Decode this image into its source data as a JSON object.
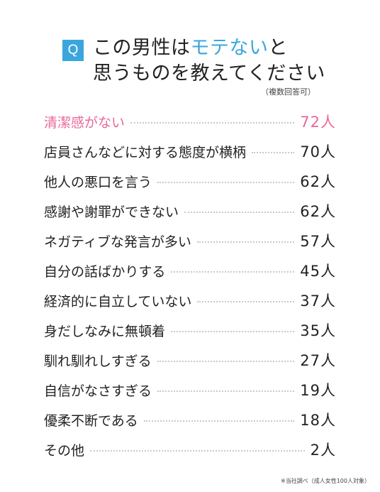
{
  "question": {
    "badge": "Q",
    "line1_before": "この男性は",
    "line1_highlight": "モテない",
    "line1_after": "と",
    "line2": "思うものを教えてください",
    "note": "（複数回答可）"
  },
  "colors": {
    "accent_blue": "#3aa6dd",
    "highlight_pink": "#e8689a",
    "text": "#222222"
  },
  "items": [
    {
      "label": "清潔感がない",
      "value": "72人"
    },
    {
      "label": "店員さんなどに対する態度が横柄",
      "value": "70人"
    },
    {
      "label": "他人の悪口を言う",
      "value": "62人"
    },
    {
      "label": "感謝や謝罪ができない",
      "value": "62人"
    },
    {
      "label": "ネガティブな発言が多い",
      "value": "57人"
    },
    {
      "label": "自分の話ばかりする",
      "value": "45人"
    },
    {
      "label": "経済的に自立していない",
      "value": "37人"
    },
    {
      "label": "身だしなみに無頓着",
      "value": "35人"
    },
    {
      "label": "馴れ馴れしすぎる",
      "value": "27人"
    },
    {
      "label": "自信がなさすぎる",
      "value": "19人"
    },
    {
      "label": "優柔不断である",
      "value": "18人"
    },
    {
      "label": "その他",
      "value": "2人"
    }
  ],
  "footnote": "※当社調べ（成人女性100人対象）"
}
